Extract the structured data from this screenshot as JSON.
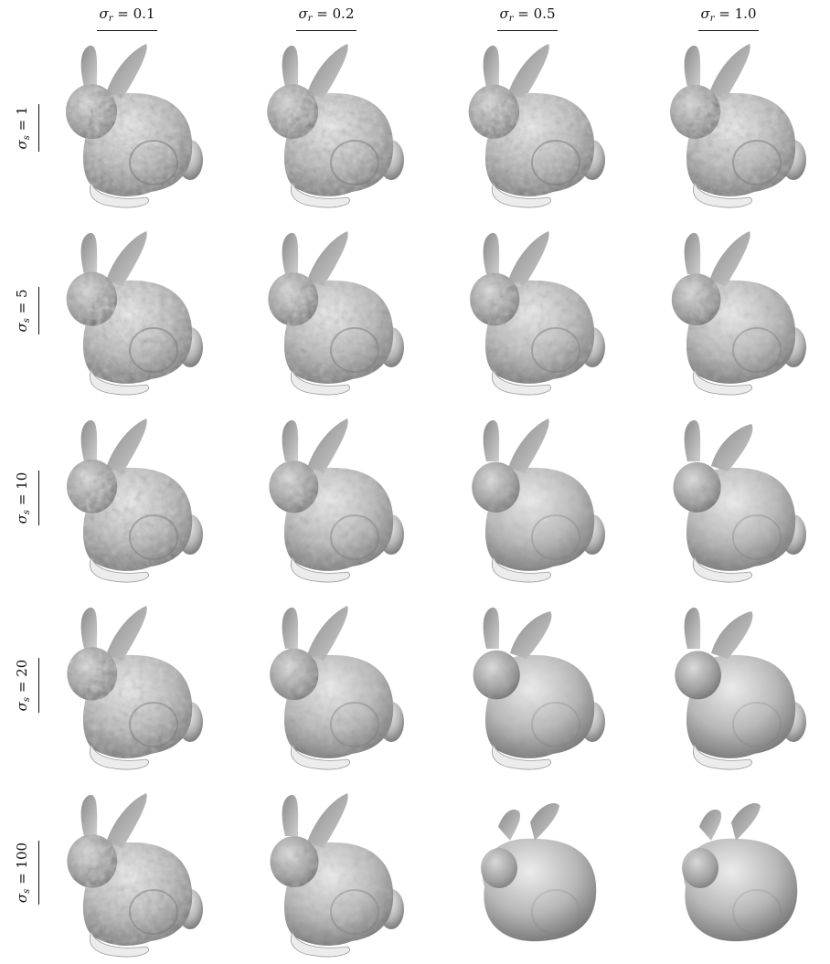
{
  "figure": {
    "column_headers": [
      {
        "symbol": "σ",
        "subscript": "r",
        "value": "= 0.1"
      },
      {
        "symbol": "σ",
        "subscript": "r",
        "value": "= 0.2"
      },
      {
        "symbol": "σ",
        "subscript": "r",
        "value": "= 0.5"
      },
      {
        "symbol": "σ",
        "subscript": "r",
        "value": "= 1.0"
      }
    ],
    "row_headers": [
      {
        "symbol": "σ",
        "subscript": "s",
        "value": "= 1"
      },
      {
        "symbol": "σ",
        "subscript": "s",
        "value": "= 5"
      },
      {
        "symbol": "σ",
        "subscript": "s",
        "value": "= 10"
      },
      {
        "symbol": "σ",
        "subscript": "s",
        "value": "= 20"
      },
      {
        "symbol": "σ",
        "subscript": "s",
        "value": "= 100"
      }
    ],
    "smoothness_grid": [
      [
        0.0,
        0.05,
        0.1,
        0.15
      ],
      [
        0.1,
        0.2,
        0.3,
        0.4
      ],
      [
        0.15,
        0.35,
        0.6,
        0.65
      ],
      [
        0.2,
        0.45,
        0.8,
        0.9
      ],
      [
        0.2,
        0.5,
        0.95,
        1.0
      ]
    ],
    "colors": {
      "text": "#111111",
      "surface_light": "#ececec",
      "surface_mid": "#b8b8b8",
      "surface_dark": "#6e6e6e",
      "background": "#ffffff"
    }
  }
}
